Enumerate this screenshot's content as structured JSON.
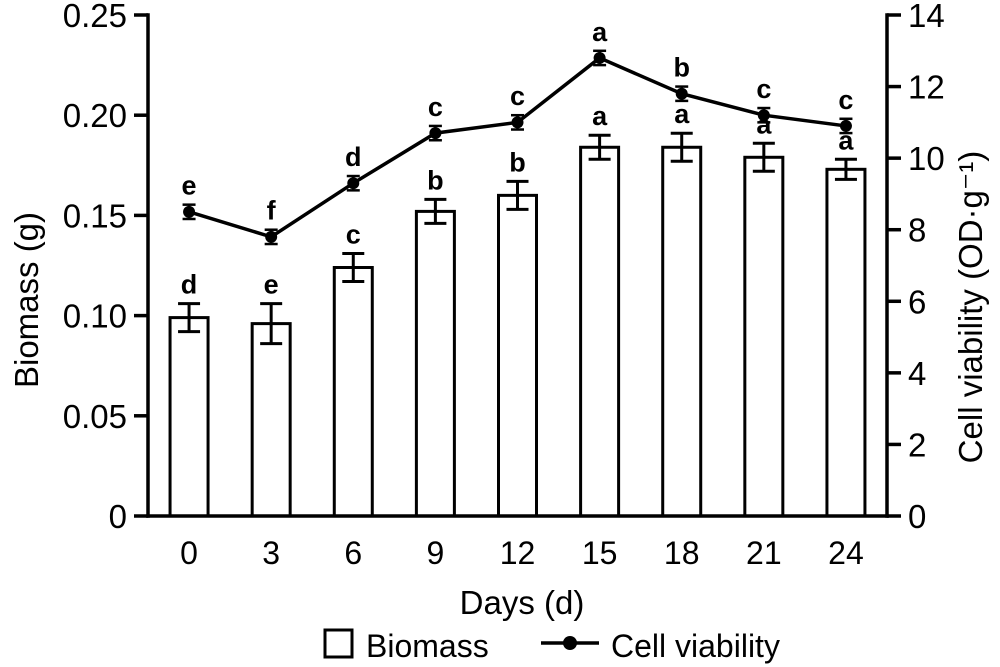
{
  "chart_data": {
    "type": "bar+line",
    "categories": [
      "0",
      "3",
      "6",
      "9",
      "12",
      "15",
      "18",
      "21",
      "24"
    ],
    "xlabel": "Days (d)",
    "left_axis": {
      "label": "Biomass (g)",
      "min": 0,
      "max": 0.25,
      "ticks": [
        {
          "v": 0,
          "label": "0"
        },
        {
          "v": 0.05,
          "label": "0.05"
        },
        {
          "v": 0.1,
          "label": "0.10"
        },
        {
          "v": 0.15,
          "label": "0.15"
        },
        {
          "v": 0.2,
          "label": "0.20"
        },
        {
          "v": 0.25,
          "label": "0.25"
        }
      ]
    },
    "right_axis": {
      "label": "Cell viability (OD·g⁻¹)",
      "min": 0,
      "max": 14,
      "ticks": [
        {
          "v": 0,
          "label": "0"
        },
        {
          "v": 2,
          "label": "2"
        },
        {
          "v": 4,
          "label": "4"
        },
        {
          "v": 6,
          "label": "6"
        },
        {
          "v": 8,
          "label": "8"
        },
        {
          "v": 10,
          "label": "10"
        },
        {
          "v": 12,
          "label": "12"
        },
        {
          "v": 14,
          "label": "14"
        }
      ]
    },
    "series": [
      {
        "name": "Biomass",
        "type": "bar",
        "axis": "left",
        "values": [
          0.099,
          0.096,
          0.124,
          0.152,
          0.16,
          0.184,
          0.184,
          0.179,
          0.173
        ],
        "errors": [
          0.007,
          0.01,
          0.007,
          0.006,
          0.007,
          0.006,
          0.007,
          0.007,
          0.005
        ],
        "letters": [
          "d",
          "e",
          "c",
          "b",
          "b",
          "a",
          "a",
          "a",
          "a"
        ]
      },
      {
        "name": "Cell viability",
        "type": "line",
        "axis": "right",
        "values": [
          8.5,
          7.8,
          9.3,
          10.7,
          11.0,
          12.8,
          11.8,
          11.2,
          10.9
        ],
        "errors": [
          0.2,
          0.2,
          0.2,
          0.2,
          0.2,
          0.2,
          0.2,
          0.2,
          0.2
        ],
        "letters": [
          "e",
          "f",
          "d",
          "c",
          "c",
          "a",
          "b",
          "c",
          "c"
        ]
      }
    ],
    "layout": {
      "legend_position": "bottom",
      "grid": false,
      "bar_fill": "#ffffff",
      "stroke_color": "#000000"
    }
  }
}
